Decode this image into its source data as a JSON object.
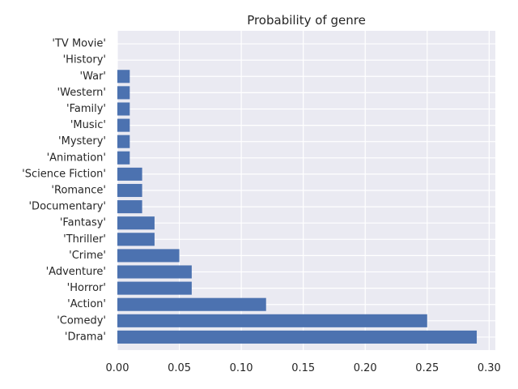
{
  "chart_data": {
    "type": "bar",
    "orientation": "horizontal",
    "title": "Probability of genre",
    "xlabel": "",
    "ylabel": "",
    "categories": [
      "'Drama'",
      "'Comedy'",
      "'Action'",
      "'Horror'",
      "'Adventure'",
      "'Crime'",
      "'Thriller'",
      "'Fantasy'",
      "'Documentary'",
      "'Romance'",
      "'Science Fiction'",
      "'Animation'",
      "'Mystery'",
      "'Music'",
      "'Family'",
      "'Western'",
      "'War'",
      "'History'",
      "'TV Movie'"
    ],
    "values": [
      0.29,
      0.25,
      0.12,
      0.06,
      0.06,
      0.05,
      0.03,
      0.03,
      0.02,
      0.02,
      0.02,
      0.01,
      0.01,
      0.01,
      0.01,
      0.01,
      0.01,
      0.0,
      0.0
    ],
    "xlim": [
      0.0,
      0.305
    ],
    "xticks": [
      "0.00",
      "0.05",
      "0.10",
      "0.15",
      "0.20",
      "0.25",
      "0.30"
    ],
    "grid": true,
    "legend": "none",
    "colors": {
      "bar": "#4c72b0",
      "background": "#eaeaf2",
      "grid": "#ffffff"
    }
  }
}
